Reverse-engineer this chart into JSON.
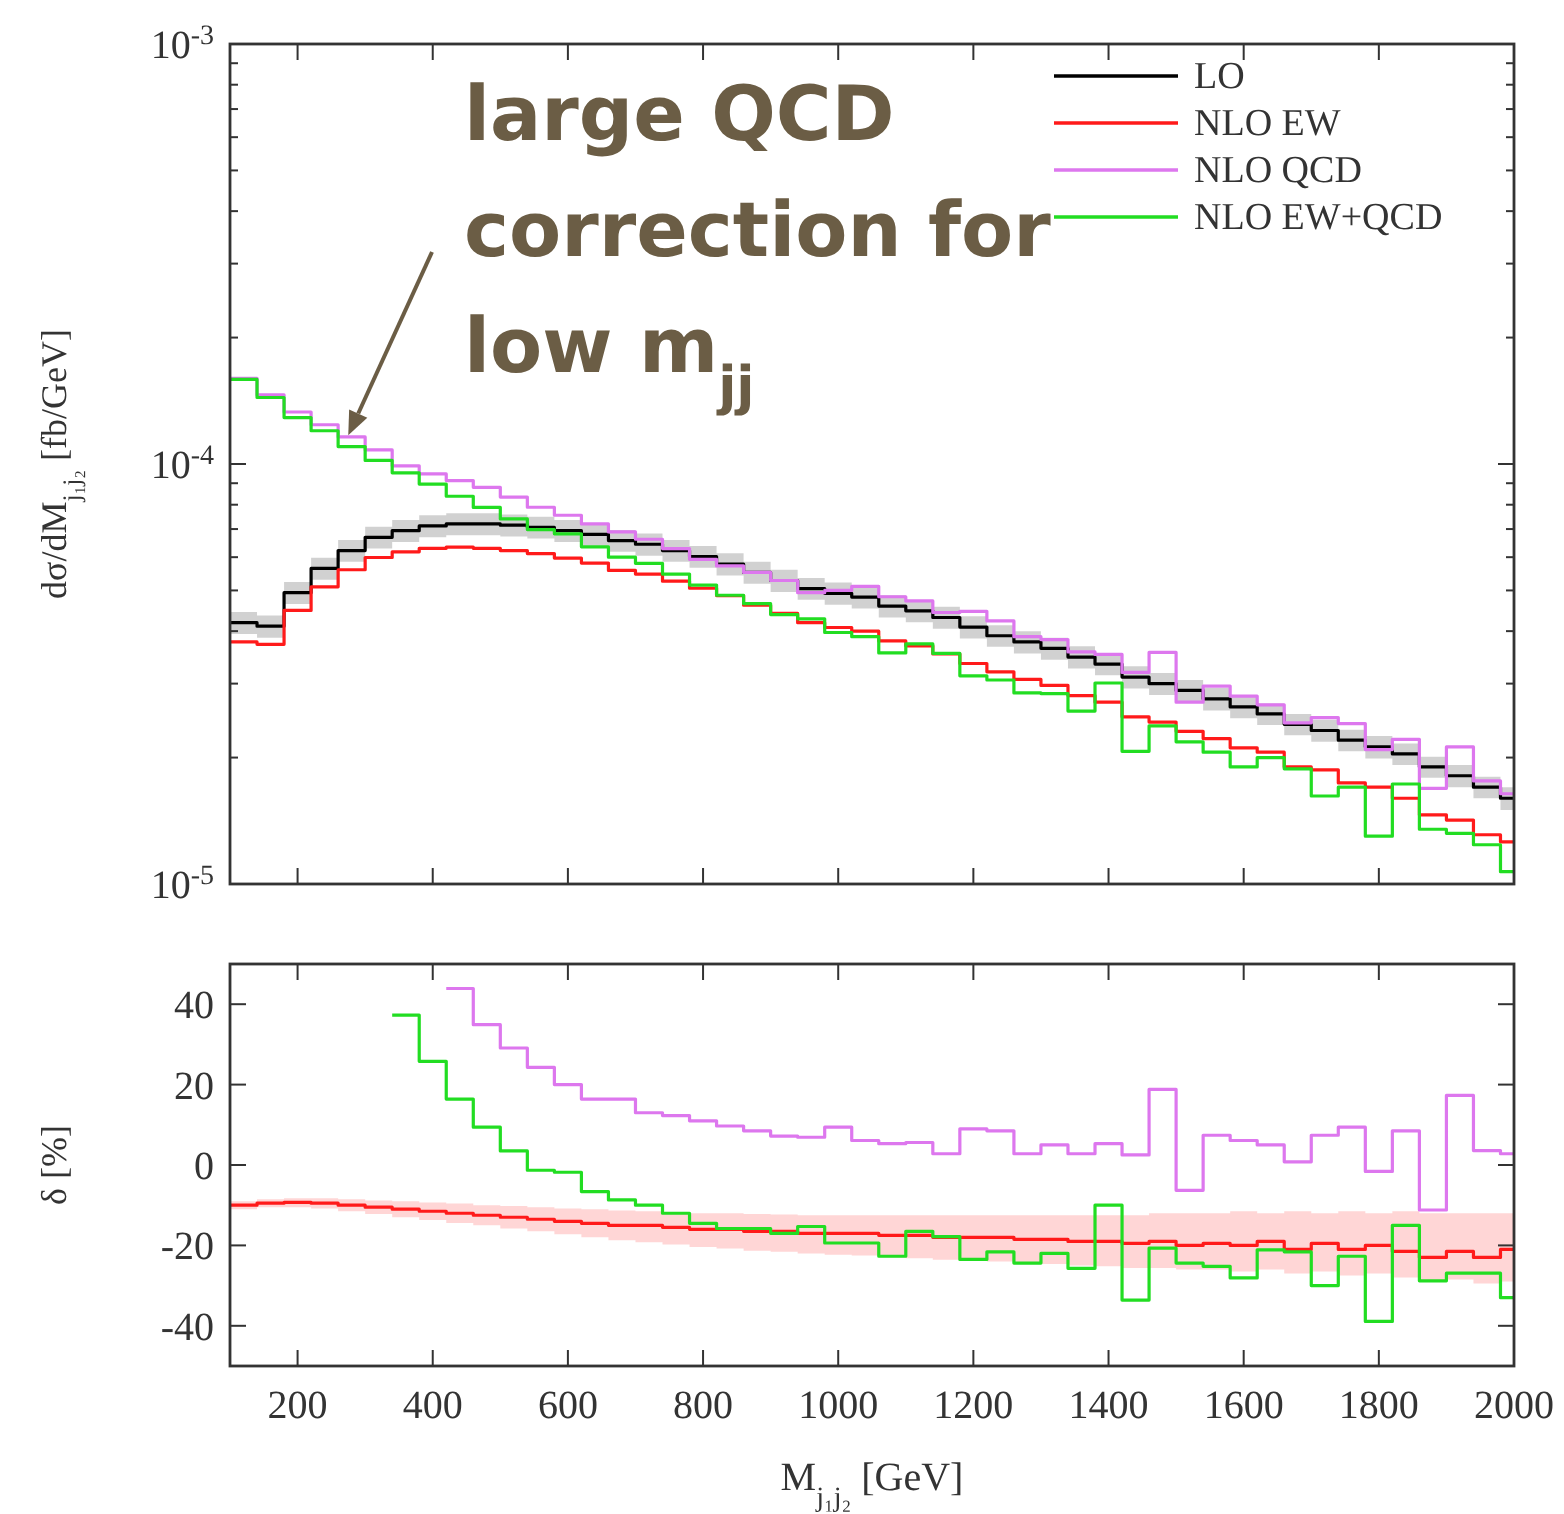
{
  "chart_data": [
    {
      "type": "step",
      "log": true,
      "ylabel": "dσ/dM$_{j₁j₂}$ [fb/GeV]",
      "legend": "top right",
      "tick_labels": "y",
      "x": [
        100,
        140,
        180,
        220,
        260,
        300,
        340,
        380,
        420,
        460,
        500,
        540,
        580,
        620,
        660,
        700,
        740,
        780,
        820,
        860,
        900,
        940,
        980,
        1020,
        1060,
        1100,
        1140,
        1180,
        1220,
        1260,
        1300,
        1340,
        1380,
        1420,
        1460,
        1500,
        1540,
        1580,
        1620,
        1660,
        1700,
        1740,
        1780,
        1820,
        1860,
        1900,
        1940,
        1980,
        2000
      ],
      "xlim": [
        100,
        2000
      ],
      "xticks": [
        200,
        400,
        600,
        800,
        1000,
        1200,
        1400,
        1600,
        1800,
        2000
      ],
      "ylim": [
        1e-05,
        0.001
      ],
      "yticks": [
        {
          "value": 1e-05,
          "label": "10$^{-5}$"
        },
        {
          "value": 2e-05,
          "label": null
        },
        {
          "value": 3e-05,
          "label": null
        },
        {
          "value": 4e-05,
          "label": null
        },
        {
          "value": 5e-05,
          "label": null
        },
        {
          "value": 6e-05,
          "label": null
        },
        {
          "value": 7e-05,
          "label": null
        },
        {
          "value": 8e-05,
          "label": null
        },
        {
          "value": 9e-05,
          "label": null
        },
        {
          "value": 0.0001,
          "label": "10$^{-4}$"
        },
        {
          "value": 0.0002,
          "label": null
        },
        {
          "value": 0.0003,
          "label": null
        },
        {
          "value": 0.0004,
          "label": null
        },
        {
          "value": 0.0005,
          "label": null
        },
        {
          "value": 0.0006,
          "label": null
        },
        {
          "value": 0.0007,
          "label": null
        },
        {
          "value": 0.0008,
          "label": null
        },
        {
          "value": 0.0009,
          "label": null
        },
        {
          "value": 0.001,
          "label": "10$^{-3}$"
        }
      ],
      "annotations": [
        {
          "text": "large QCD correction for low m$_{jj}$",
          "x": 275,
          "y": 0.000117
        }
      ],
      "series": [
        {
          "name": "LO",
          "color": "#000000",
          "values": [
            4.19e-05,
            4.11e-05,
            4.94e-05,
            5.64e-05,
            6.22e-05,
            6.69e-05,
            6.94e-05,
            7.12e-05,
            7.2e-05,
            7.2e-05,
            7.15e-05,
            7.07e-05,
            6.94e-05,
            6.8e-05,
            6.57e-05,
            6.44e-05,
            6.22e-05,
            6.02e-05,
            5.78e-05,
            5.52e-05,
            5.28e-05,
            5.05e-05,
            4.92e-05,
            4.82e-05,
            4.59e-05,
            4.47e-05,
            4.31e-05,
            4.09e-05,
            3.9e-05,
            3.77e-05,
            3.64e-05,
            3.47e-05,
            3.34e-05,
            3.11e-05,
            3e-05,
            2.89e-05,
            2.76e-05,
            2.64e-05,
            2.54e-05,
            2.4e-05,
            2.32e-05,
            2.2e-05,
            2.12e-05,
            2.04e-05,
            1.9e-05,
            1.81e-05,
            1.7e-05,
            1.6e-05,
            1.6e-05
          ],
          "lower": [
            3.94e-05,
            3.86e-05,
            4.64e-05,
            5.3e-05,
            5.85e-05,
            6.29e-05,
            6.52e-05,
            6.69e-05,
            6.77e-05,
            6.77e-05,
            6.72e-05,
            6.65e-05,
            6.52e-05,
            6.39e-05,
            6.18e-05,
            6.05e-05,
            5.85e-05,
            5.66e-05,
            5.43e-05,
            5.19e-05,
            4.96e-05,
            4.75e-05,
            4.62e-05,
            4.53e-05,
            4.31e-05,
            4.2e-05,
            4.05e-05,
            3.84e-05,
            3.67e-05,
            3.54e-05,
            3.42e-05,
            3.26e-05,
            3.14e-05,
            2.92e-05,
            2.82e-05,
            2.72e-05,
            2.59e-05,
            2.48e-05,
            2.39e-05,
            2.26e-05,
            2.18e-05,
            2.07e-05,
            1.99e-05,
            1.92e-05,
            1.79e-05,
            1.7e-05,
            1.6e-05,
            1.5e-05,
            1.5e-05
          ],
          "upper": [
            4.44e-05,
            4.36e-05,
            5.24e-05,
            5.98e-05,
            6.59e-05,
            7.09e-05,
            7.36e-05,
            7.55e-05,
            7.63e-05,
            7.63e-05,
            7.58e-05,
            7.49e-05,
            7.36e-05,
            7.21e-05,
            6.96e-05,
            6.83e-05,
            6.59e-05,
            6.38e-05,
            6.13e-05,
            5.85e-05,
            5.6e-05,
            5.35e-05,
            5.22e-05,
            5.11e-05,
            4.87e-05,
            4.74e-05,
            4.57e-05,
            4.34e-05,
            4.13e-05,
            4e-05,
            3.86e-05,
            3.68e-05,
            3.54e-05,
            3.3e-05,
            3.18e-05,
            3.06e-05,
            2.93e-05,
            2.8e-05,
            2.69e-05,
            2.54e-05,
            2.46e-05,
            2.33e-05,
            2.25e-05,
            2.16e-05,
            2.01e-05,
            1.92e-05,
            1.8e-05,
            1.7e-05,
            1.7e-05
          ]
        },
        {
          "name": "NLO EW",
          "color": "#ff1a1a",
          "values": [
            3.77e-05,
            3.72e-05,
            4.48e-05,
            5.1e-05,
            5.6e-05,
            5.99e-05,
            6.18e-05,
            6.3e-05,
            6.34e-05,
            6.3e-05,
            6.22e-05,
            6.12e-05,
            5.97e-05,
            5.81e-05,
            5.58e-05,
            5.47e-05,
            5.26e-05,
            5.06e-05,
            4.86e-05,
            4.61e-05,
            4.41e-05,
            4.19e-05,
            4.08e-05,
            4e-05,
            3.79e-05,
            3.69e-05,
            3.53e-05,
            3.35e-05,
            3.2e-05,
            3.07e-05,
            2.97e-05,
            2.81e-05,
            2.71e-05,
            2.5e-05,
            2.43e-05,
            2.31e-05,
            2.22e-05,
            2.11e-05,
            2.06e-05,
            1.9e-05,
            1.87e-05,
            1.74e-05,
            1.7e-05,
            1.6e-05,
            1.46e-05,
            1.42e-05,
            1.31e-05,
            1.26e-05,
            1.26e-05
          ]
        },
        {
          "name": "NLO QCD",
          "color": "#dd77ee",
          "values": [
            0.00016,
            0.000146,
            0.000133,
            0.000124,
            0.000116,
            0.000108,
            9.9e-05,
            9.47e-05,
            9.13e-05,
            8.8e-05,
            8.34e-05,
            7.89e-05,
            7.55e-05,
            7.2e-05,
            6.89e-05,
            6.62e-05,
            6.29e-05,
            5.93e-05,
            5.72e-05,
            5.52e-05,
            5.28e-05,
            4.94e-05,
            5e-05,
            5.11e-05,
            4.83e-05,
            4.72e-05,
            4.43e-05,
            4.46e-05,
            4.23e-05,
            3.88e-05,
            3.82e-05,
            3.57e-05,
            3.52e-05,
            3.19e-05,
            3.56e-05,
            2.71e-05,
            2.96e-05,
            2.8e-05,
            2.67e-05,
            2.42e-05,
            2.49e-05,
            2.41e-05,
            2.09e-05,
            2.21e-05,
            1.69e-05,
            2.12e-05,
            1.76e-05,
            1.64e-05,
            1.64e-05
          ]
        },
        {
          "name": "NLO EW+QCD",
          "color": "#22dd22",
          "values": [
            0.000159,
            0.000144,
            0.000129,
            0.00012,
            0.00011,
            0.000102,
            9.53e-05,
            8.96e-05,
            8.38e-05,
            7.88e-05,
            7.4e-05,
            6.98e-05,
            6.82e-05,
            6.35e-05,
            6e-05,
            5.8e-05,
            5.47e-05,
            5.15e-05,
            4.87e-05,
            4.65e-05,
            4.38e-05,
            4.28e-05,
            3.97e-05,
            3.88e-05,
            3.55e-05,
            3.73e-05,
            3.54e-05,
            3.13e-05,
            3.06e-05,
            2.85e-05,
            2.84e-05,
            2.58e-05,
            3.01e-05,
            2.07e-05,
            2.38e-05,
            2.18e-05,
            2.06e-05,
            1.9e-05,
            2e-05,
            1.88e-05,
            1.62e-05,
            1.7e-05,
            1.3e-05,
            1.73e-05,
            1.35e-05,
            1.32e-05,
            1.24e-05,
            1.07e-05,
            1.07e-05
          ]
        }
      ]
    },
    {
      "type": "step",
      "xlabel": "M$_{j₁j₂}$ [GeV]",
      "ylabel": "δ [%]",
      "x": [
        100,
        140,
        180,
        220,
        260,
        300,
        340,
        380,
        420,
        460,
        500,
        540,
        580,
        620,
        660,
        700,
        740,
        780,
        820,
        860,
        900,
        940,
        980,
        1020,
        1060,
        1100,
        1140,
        1180,
        1220,
        1260,
        1300,
        1340,
        1380,
        1420,
        1460,
        1500,
        1540,
        1580,
        1620,
        1660,
        1700,
        1740,
        1780,
        1820,
        1860,
        1900,
        1940,
        1980,
        2000
      ],
      "xlim": [
        100,
        2000
      ],
      "xticks": [
        200,
        400,
        600,
        800,
        1000,
        1200,
        1400,
        1600,
        1800,
        2000
      ],
      "ylim": [
        -50,
        50
      ],
      "yticks": [
        -40,
        -20,
        0,
        20,
        40
      ],
      "series": [
        {
          "color": "#ff1a1a",
          "values": [
            -10,
            -9.5,
            -9.3,
            -9.5,
            -10,
            -10.5,
            -11,
            -11.5,
            -12,
            -12.5,
            -13,
            -13.5,
            -14,
            -14.5,
            -15,
            -15,
            -15.5,
            -16,
            -16,
            -16.5,
            -16.5,
            -17,
            -17,
            -17,
            -17.5,
            -17.5,
            -18,
            -18,
            -18,
            -18.5,
            -18.5,
            -19,
            -19,
            -19.5,
            -19,
            -20,
            -19.5,
            -20,
            -19,
            -21,
            -19.5,
            -21,
            -20,
            -21.5,
            -23,
            -21.5,
            -23,
            -21,
            -21
          ],
          "lower": [
            -11,
            -10.5,
            -10.5,
            -10.8,
            -11.5,
            -12.2,
            -13,
            -13.7,
            -14.4,
            -15,
            -15.8,
            -16.5,
            -17.2,
            -18,
            -18.7,
            -19.2,
            -19.8,
            -20.4,
            -20.8,
            -21.3,
            -21.6,
            -22,
            -22.3,
            -22.5,
            -23,
            -23.2,
            -23.6,
            -23.8,
            -24,
            -24.4,
            -24.6,
            -25,
            -25.2,
            -25.6,
            -25.6,
            -26,
            -26,
            -26.5,
            -26,
            -27,
            -26.5,
            -27.5,
            -27,
            -28,
            -29,
            -28.5,
            -29.5,
            -29,
            -29
          ],
          "upper": [
            -9,
            -8.5,
            -8.3,
            -8.3,
            -8.5,
            -8.8,
            -9,
            -9.3,
            -9.6,
            -10,
            -10.2,
            -10.5,
            -10.8,
            -11,
            -11.3,
            -11.5,
            -11.7,
            -12,
            -12,
            -12.2,
            -12.3,
            -12.5,
            -12.5,
            -12.5,
            -12.5,
            -12.5,
            -12.5,
            -12.5,
            -12.5,
            -12.5,
            -12.5,
            -12.5,
            -12.5,
            -12.5,
            -12,
            -12,
            -12,
            -11.5,
            -12,
            -11.5,
            -12,
            -11.5,
            -12,
            -11.5,
            -12,
            -12,
            -12,
            -12,
            -12
          ]
        },
        {
          "color": "#dd77ee",
          "values": [
            null,
            null,
            null,
            null,
            null,
            null,
            null,
            null,
            43.9,
            34.9,
            29.1,
            24.3,
            20,
            16.4,
            16.4,
            13,
            12.3,
            11,
            9.7,
            8.5,
            7.2,
            6.9,
            9.4,
            6.1,
            5.3,
            5.6,
            2.8,
            9,
            8.5,
            2.8,
            5,
            2.8,
            5.3,
            2.5,
            18.8,
            -6.3,
            7.4,
            6.1,
            5,
            0.8,
            7.4,
            9.4,
            -1.6,
            8.5,
            -11.2,
            17.3,
            3.6,
            2.8,
            2.8
          ]
        },
        {
          "color": "#22dd22",
          "values": [
            null,
            null,
            null,
            null,
            null,
            null,
            37.3,
            25.8,
            16.4,
            9.4,
            3.5,
            -1.3,
            -1.8,
            -6.6,
            -8.7,
            -10,
            -12,
            -14.5,
            -15.8,
            -15.8,
            -17,
            -15.3,
            -19.4,
            -19.4,
            -22.7,
            -16.5,
            -17.8,
            -23.5,
            -21.6,
            -24.4,
            -22,
            -25.7,
            -10,
            -33.6,
            -20.7,
            -24.4,
            -25.2,
            -28.1,
            -21.1,
            -21.6,
            -30,
            -22.7,
            -38.9,
            -15,
            -28.8,
            -26.9,
            -26.9,
            -33,
            -33
          ]
        }
      ]
    }
  ]
}
